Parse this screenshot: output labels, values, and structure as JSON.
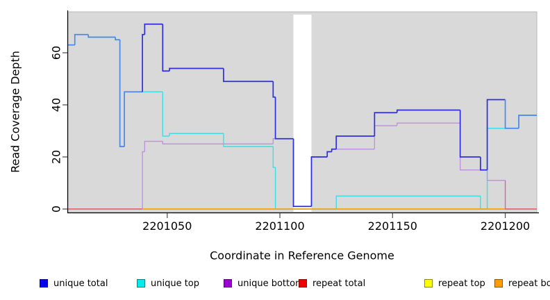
{
  "figure": {
    "x_label": "Coordinate in Reference Genome",
    "y_label": "Read Coverage Depth"
  },
  "chart_data": {
    "type": "line",
    "subtype": "step-coverage-plot",
    "title": "",
    "xlabel": "Coordinate in Reference Genome",
    "ylabel": "Read Coverage Depth",
    "xlim": [
      2201006,
      2201214
    ],
    "ylim": [
      0,
      75
    ],
    "x_ticks": [
      2201050,
      2201100,
      2201150,
      2201200
    ],
    "x_tick_labels": [
      "2201050",
      "2201100",
      "2201150",
      "2201200"
    ],
    "y_ticks": [
      0,
      20,
      40,
      60
    ],
    "y_tick_labels": [
      "0",
      "20",
      "40",
      "60"
    ],
    "grid": false,
    "legend_position": "bottom",
    "background": {
      "figure": "#ffffff",
      "panel": "#d9d9d9",
      "panel_border": "#b8b8b8"
    },
    "gap": {
      "from": 2201106,
      "to": 2201114,
      "color": "#ffffff"
    },
    "series": [
      {
        "name": "unique total",
        "color": "#2d2de2",
        "overlap_color": "#4d87e8",
        "overlap_with": "unique top",
        "points": [
          [
            2201006,
            63
          ],
          [
            2201009,
            67
          ],
          [
            2201015,
            66
          ],
          [
            2201027,
            65
          ],
          [
            2201029,
            24
          ],
          [
            2201031,
            45
          ],
          [
            2201039,
            67
          ],
          [
            2201040,
            71
          ],
          [
            2201048,
            53
          ],
          [
            2201051,
            54
          ],
          [
            2201075,
            49
          ],
          [
            2201097,
            43
          ],
          [
            2201098,
            27
          ],
          [
            2201106,
            1
          ],
          [
            2201114,
            20
          ],
          [
            2201121,
            22
          ],
          [
            2201123,
            23
          ],
          [
            2201125,
            28
          ],
          [
            2201142,
            37
          ],
          [
            2201152,
            38
          ],
          [
            2201180,
            20
          ],
          [
            2201189,
            15
          ],
          [
            2201192,
            42
          ],
          [
            2201200,
            31
          ],
          [
            2201206,
            36
          ]
        ]
      },
      {
        "name": "unique top",
        "color": "#3edde4",
        "points": [
          [
            2201006,
            63
          ],
          [
            2201009,
            67
          ],
          [
            2201015,
            66
          ],
          [
            2201027,
            65
          ],
          [
            2201029,
            24
          ],
          [
            2201031,
            45
          ],
          [
            2201048,
            28
          ],
          [
            2201051,
            29
          ],
          [
            2201075,
            24
          ],
          [
            2201097,
            16
          ],
          [
            2201098,
            0
          ],
          [
            2201125,
            5
          ],
          [
            2201189,
            0
          ],
          [
            2201192,
            31
          ],
          [
            2201206,
            36
          ]
        ]
      },
      {
        "name": "unique bottom",
        "color": "#bf94de",
        "zero_color": "#e2609c",
        "points": [
          [
            2201006,
            0
          ],
          [
            2201039,
            22
          ],
          [
            2201040,
            26
          ],
          [
            2201048,
            25
          ],
          [
            2201097,
            27
          ],
          [
            2201106,
            1
          ],
          [
            2201114,
            20
          ],
          [
            2201121,
            22
          ],
          [
            2201123,
            23
          ],
          [
            2201142,
            32
          ],
          [
            2201152,
            33
          ],
          [
            2201180,
            15
          ],
          [
            2201192,
            11
          ],
          [
            2201200,
            0
          ]
        ]
      },
      {
        "name": "repeat total",
        "color": "#e00000",
        "points": [
          [
            2201006,
            0
          ]
        ]
      },
      {
        "name": "repeat top",
        "color": "#ffff00",
        "points": [
          [
            2201006,
            0
          ]
        ]
      },
      {
        "name": "repeat bottom",
        "color": "#ffa014",
        "points": [
          [
            2201006,
            0
          ]
        ]
      }
    ],
    "legend": [
      {
        "label": "unique total",
        "color": "#0000f5"
      },
      {
        "label": "unique top",
        "color": "#00eded"
      },
      {
        "label": "unique bottom",
        "color": "#9c00d3"
      },
      {
        "label": "repeat total",
        "color": "#ee0000"
      },
      {
        "label": "repeat top",
        "color": "#ffff00"
      },
      {
        "label": "repeat bottom",
        "color": "#ff9d00"
      }
    ]
  }
}
